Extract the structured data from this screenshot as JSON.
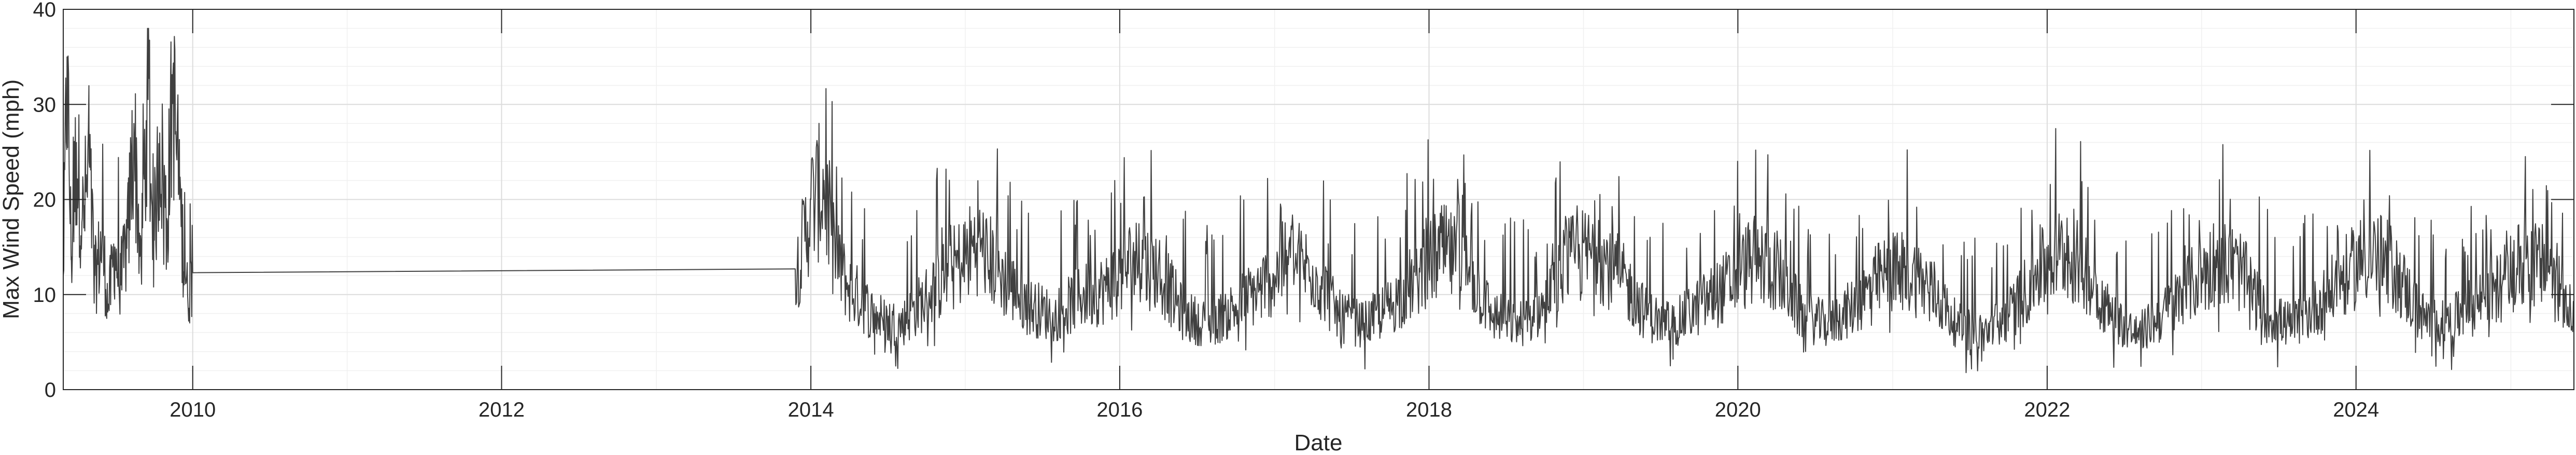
{
  "chart_data": {
    "type": "line",
    "xlabel": "Date",
    "ylabel": "Max Wind Speed (mph)",
    "xlim": [
      "2009-03-01",
      "2025-05-30"
    ],
    "ylim": [
      0,
      40
    ],
    "x_ticks": [
      "2010",
      "2012",
      "2014",
      "2016",
      "2018",
      "2020",
      "2022",
      "2024"
    ],
    "y_ticks": [
      "0",
      "10",
      "20",
      "30",
      "40"
    ],
    "grid": true,
    "minor_grid": true,
    "line_color": "#404040",
    "series": [
      {
        "points": [
          [
            "2009-03-01",
            12
          ],
          [
            "2009-03-10",
            35
          ],
          [
            "2009-03-20",
            14
          ],
          [
            "2009-04-01",
            26
          ],
          [
            "2009-04-15",
            18
          ],
          [
            "2009-05-01",
            24
          ],
          [
            "2009-05-15",
            12
          ],
          [
            "2009-06-01",
            16
          ],
          [
            "2009-06-15",
            9
          ],
          [
            "2009-07-01",
            15
          ],
          [
            "2009-07-15",
            11
          ],
          [
            "2009-08-01",
            17
          ],
          [
            "2009-08-15",
            28
          ],
          [
            "2009-09-01",
            13
          ],
          [
            "2009-09-15",
            32
          ],
          [
            "2009-10-01",
            16
          ],
          [
            "2009-10-15",
            27
          ],
          [
            "2009-11-01",
            18
          ],
          [
            "2009-11-15",
            33
          ],
          [
            "2009-12-01",
            20
          ],
          [
            "2009-12-20",
            10
          ],
          [
            "2010-01-01",
            12.3
          ],
          [
            "2013-11-25",
            12.7
          ],
          [
            "2013-12-10",
            15
          ],
          [
            "2014-01-01",
            20
          ],
          [
            "2014-02-01",
            22
          ],
          [
            "2014-03-01",
            14
          ],
          [
            "2014-04-01",
            11
          ],
          [
            "2014-06-01",
            8
          ],
          [
            "2014-08-01",
            7
          ],
          [
            "2014-10-01",
            10
          ],
          [
            "2014-12-01",
            13
          ],
          [
            "2015-02-01",
            16
          ],
          [
            "2015-04-01",
            12
          ],
          [
            "2015-06-01",
            9
          ],
          [
            "2015-08-01",
            8
          ],
          [
            "2015-10-01",
            10
          ],
          [
            "2015-12-01",
            11
          ],
          [
            "2016-02-01",
            14
          ],
          [
            "2016-04-01",
            13
          ],
          [
            "2016-06-01",
            8
          ],
          [
            "2016-08-01",
            7
          ],
          [
            "2016-10-01",
            9
          ],
          [
            "2016-12-01",
            11
          ],
          [
            "2017-02-01",
            14
          ],
          [
            "2017-04-01",
            13
          ],
          [
            "2017-06-01",
            8
          ],
          [
            "2017-08-01",
            7
          ],
          [
            "2017-10-01",
            9
          ],
          [
            "2017-12-01",
            12
          ],
          [
            "2018-02-01",
            15
          ],
          [
            "2018-04-01",
            13
          ],
          [
            "2018-06-01",
            8
          ],
          [
            "2018-08-01",
            7
          ],
          [
            "2018-10-01",
            9
          ],
          [
            "2018-12-01",
            14
          ],
          [
            "2019-02-01",
            15
          ],
          [
            "2019-04-01",
            12
          ],
          [
            "2019-06-01",
            8
          ],
          [
            "2019-08-01",
            7
          ],
          [
            "2019-10-01",
            9
          ],
          [
            "2019-12-01",
            11
          ],
          [
            "2020-02-01",
            14
          ],
          [
            "2020-04-01",
            13
          ],
          [
            "2020-06-01",
            8
          ],
          [
            "2020-08-01",
            7
          ],
          [
            "2020-10-01",
            9
          ],
          [
            "2020-12-01",
            12
          ],
          [
            "2021-02-01",
            13
          ],
          [
            "2021-04-01",
            11
          ],
          [
            "2021-06-01",
            7
          ],
          [
            "2021-08-01",
            6
          ],
          [
            "2021-10-01",
            8
          ],
          [
            "2021-12-01",
            12
          ],
          [
            "2022-02-01",
            15
          ],
          [
            "2022-04-01",
            13
          ],
          [
            "2022-06-01",
            8
          ],
          [
            "2022-08-01",
            6
          ],
          [
            "2022-10-01",
            8
          ],
          [
            "2022-12-01",
            11
          ],
          [
            "2023-02-01",
            14
          ],
          [
            "2023-04-01",
            13
          ],
          [
            "2023-06-01",
            8
          ],
          [
            "2023-08-01",
            7
          ],
          [
            "2023-10-01",
            9
          ],
          [
            "2023-12-01",
            12
          ],
          [
            "2024-02-01",
            15
          ],
          [
            "2024-04-01",
            13
          ],
          [
            "2024-06-01",
            8
          ],
          [
            "2024-08-01",
            7
          ],
          [
            "2024-10-01",
            9
          ],
          [
            "2024-12-01",
            11
          ],
          [
            "2025-02-01",
            14
          ],
          [
            "2025-04-01",
            13
          ],
          [
            "2025-05-30",
            9
          ]
        ]
      }
    ]
  }
}
